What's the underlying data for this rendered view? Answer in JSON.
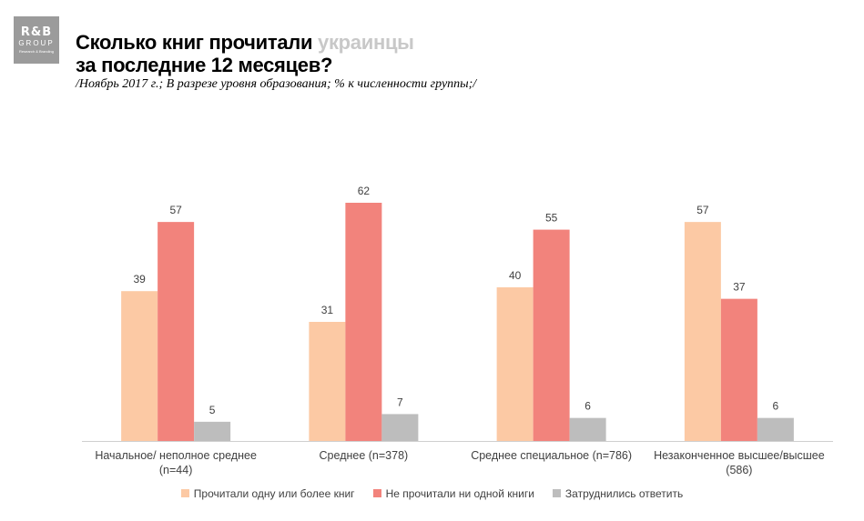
{
  "logo": {
    "line1": "R&B",
    "line2": "GROUP",
    "line3": "Research & Branding"
  },
  "header": {
    "title_part1": "Сколько книг прочитали ",
    "title_accent": "украинцы",
    "title_line2": "за последние 12 месяцев?",
    "subtitle": "/Ноябрь 2017 г.; В разрезе уровня образования; % к численности группы;/"
  },
  "colors": {
    "series1": "#fcc9a4",
    "series2": "#f2837c",
    "series3": "#bdbdbd",
    "axis": "#d0d0d0",
    "text": "#404040"
  },
  "chart_data": {
    "type": "bar",
    "categories": [
      [
        "Начальное/ неполное среднее",
        "(n=44)"
      ],
      [
        "Среднее (n=378)"
      ],
      [
        "Среднее специальное (n=786)"
      ],
      [
        "Незаконченное высшее/высшее",
        "(586)"
      ]
    ],
    "series": [
      {
        "name": "Прочитали одну или более книг",
        "values": [
          39,
          31,
          40,
          57
        ]
      },
      {
        "name": "Не прочитали ни одной книги",
        "values": [
          57,
          62,
          55,
          37
        ]
      },
      {
        "name": "Затруднились ответить",
        "values": [
          5,
          7,
          6,
          6
        ]
      }
    ],
    "ylim": [
      0,
      70
    ],
    "legend_position": "bottom",
    "grid": false
  }
}
